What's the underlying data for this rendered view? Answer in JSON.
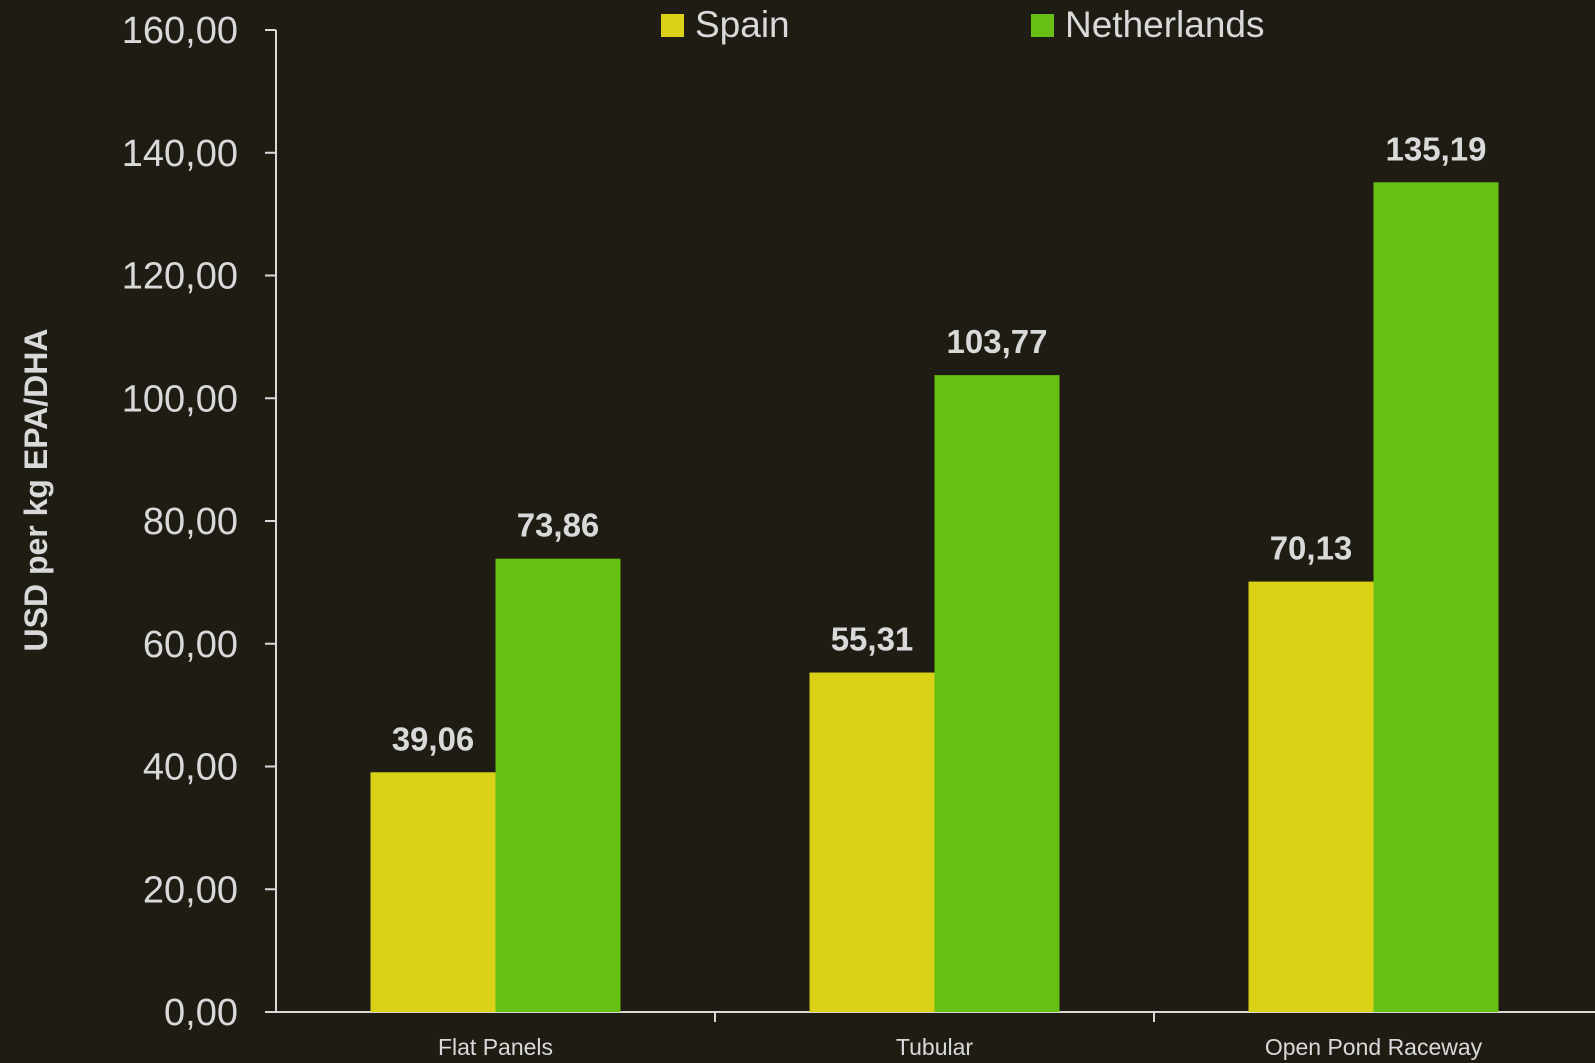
{
  "chart_data": {
    "type": "bar",
    "title": "",
    "xlabel": "",
    "ylabel": "USD per kg EPA/DHA",
    "ylim": [
      0,
      160
    ],
    "yticks": [
      "0,00",
      "20,00",
      "40,00",
      "60,00",
      "80,00",
      "100,00",
      "120,00",
      "140,00",
      "160,00"
    ],
    "categories": [
      "Flat Panels",
      "Tubular",
      "Open Pond Raceway"
    ],
    "series": [
      {
        "name": "Spain",
        "color": "#dbd116",
        "values": [
          39.06,
          55.31,
          70.13
        ],
        "labels": [
          "39,06",
          "55,31",
          "70,13"
        ]
      },
      {
        "name": "Netherlands",
        "color": "#67bf13",
        "values": [
          73.86,
          103.77,
          135.19
        ],
        "labels": [
          "73,86",
          "103,77",
          "135,19"
        ]
      }
    ],
    "legend_position": "top",
    "grid": false,
    "colors": {
      "background": "#1f1c14",
      "text": "#d9d9d9",
      "axis": "#d9d9d9"
    }
  }
}
